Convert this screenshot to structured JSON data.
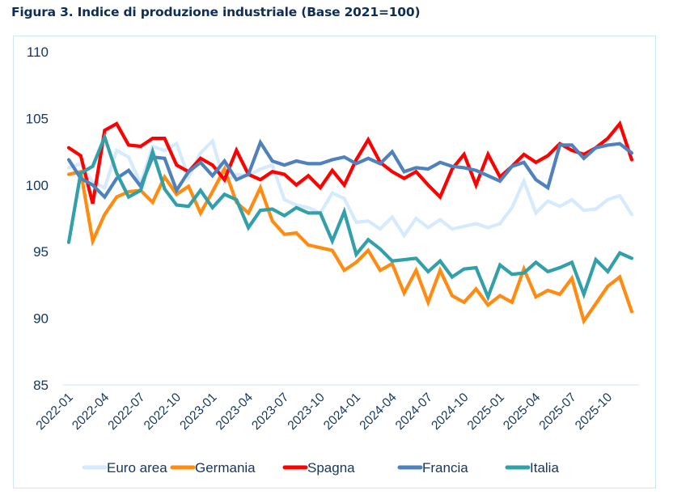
{
  "figure": {
    "title": "Figura 3. Indice di produzione industriale (Base 2021=100)"
  },
  "chart_data": {
    "type": "line",
    "title": "Figura 3. Indice di produzione industriale (Base 2021=100)",
    "xlabel": "",
    "ylabel": "",
    "ylim": [
      85,
      110
    ],
    "yticks": [
      85,
      90,
      95,
      100,
      105,
      110
    ],
    "grid": false,
    "legend_position": "bottom",
    "x": [
      "2022-01",
      "2022-02",
      "2022-03",
      "2022-04",
      "2022-05",
      "2022-06",
      "2022-07",
      "2022-08",
      "2022-09",
      "2022-10",
      "2022-11",
      "2022-12",
      "2023-01",
      "2023-02",
      "2023-03",
      "2023-04",
      "2023-05",
      "2023-06",
      "2023-07",
      "2023-08",
      "2023-09",
      "2023-10",
      "2023-11",
      "2023-12",
      "2024-01",
      "2024-02",
      "2024-03",
      "2024-04",
      "2024-05",
      "2024-06",
      "2024-07",
      "2024-08",
      "2024-09",
      "2024-10",
      "2024-11",
      "2024-12",
      "2025-01",
      "2025-02",
      "2025-03",
      "2025-04",
      "2025-05",
      "2025-06",
      "2025-07",
      "2025-08",
      "2025-09",
      "2025-10",
      "2025-11",
      "2025-12"
    ],
    "xtick_labels": [
      "2022-01",
      "2022-04",
      "2022-07",
      "2022-10",
      "2023-01",
      "2023-04",
      "2023-07",
      "2023-10",
      "2024-01",
      "2024-04",
      "2024-07",
      "2024-10",
      "2025-01",
      "2025-04",
      "2025-07",
      "2025-10"
    ],
    "series": [
      {
        "name": "Euro area",
        "color": "#d6eafe",
        "values": [
          101.3,
          101.6,
          100.2,
          99.8,
          102.6,
          102.1,
          100.1,
          102.9,
          102.6,
          103.1,
          100.6,
          102.4,
          103.3,
          100.2,
          100.8,
          100.7,
          101.2,
          101.5,
          98.9,
          98.5,
          98.3,
          97.9,
          99.4,
          99.0,
          97.2,
          97.3,
          96.7,
          97.6,
          96.2,
          97.5,
          96.8,
          97.4,
          96.7,
          96.9,
          97.1,
          96.8,
          97.1,
          98.3,
          100.3,
          97.9,
          98.8,
          98.4,
          98.9,
          98.1,
          98.2,
          98.9,
          99.2,
          97.8
        ]
      },
      {
        "name": "Germania",
        "color": "#ff8c11",
        "values": [
          100.8,
          101.0,
          95.8,
          97.8,
          99.1,
          99.5,
          99.6,
          98.7,
          100.6,
          99.3,
          99.9,
          97.9,
          99.5,
          101.2,
          98.7,
          97.9,
          99.8,
          97.3,
          96.3,
          96.4,
          95.5,
          95.3,
          95.1,
          93.6,
          94.2,
          95.1,
          93.6,
          94.1,
          91.9,
          93.6,
          91.2,
          93.6,
          91.7,
          91.2,
          92.2,
          91.0,
          91.7,
          91.2,
          93.7,
          91.6,
          92.1,
          91.8,
          93.0,
          89.8,
          91.1,
          92.4,
          93.1,
          90.5
        ]
      },
      {
        "name": "Spagna",
        "color": "#ff0000",
        "values": [
          102.8,
          102.2,
          98.6,
          104.1,
          104.6,
          103.0,
          102.9,
          103.5,
          103.5,
          101.5,
          101.0,
          102.0,
          101.5,
          100.4,
          102.6,
          100.8,
          100.4,
          101.0,
          100.8,
          100.0,
          100.7,
          99.8,
          101.1,
          100.0,
          101.9,
          103.4,
          101.7,
          101.0,
          100.5,
          101.0,
          100.0,
          99.1,
          101.2,
          102.3,
          100.0,
          102.3,
          100.6,
          101.4,
          102.3,
          101.7,
          102.2,
          103.1,
          102.6,
          102.3,
          102.8,
          103.5,
          104.6,
          101.9
        ]
      },
      {
        "name": "Francia",
        "color": "#4f81bd",
        "values": [
          101.9,
          100.5,
          100.0,
          99.1,
          100.5,
          101.1,
          99.9,
          102.1,
          102.0,
          99.6,
          101.0,
          101.7,
          100.7,
          101.8,
          100.4,
          100.8,
          103.2,
          101.8,
          101.5,
          101.8,
          101.6,
          101.6,
          101.9,
          102.1,
          101.6,
          102.0,
          101.6,
          102.5,
          101.0,
          101.3,
          101.2,
          101.7,
          101.4,
          101.3,
          101.1,
          100.7,
          100.3,
          101.4,
          101.7,
          100.4,
          99.8,
          103.0,
          103.0,
          102.0,
          102.8,
          103.0,
          103.1,
          102.4
        ]
      },
      {
        "name": "Italia",
        "color": "#31a0a9",
        "values": [
          95.7,
          100.9,
          101.4,
          103.6,
          100.9,
          99.1,
          99.6,
          102.5,
          99.7,
          98.5,
          98.4,
          99.6,
          98.3,
          99.3,
          98.9,
          96.8,
          98.1,
          98.2,
          97.7,
          98.3,
          97.9,
          97.9,
          95.8,
          98.0,
          94.8,
          95.9,
          95.2,
          94.3,
          94.4,
          94.5,
          93.5,
          94.3,
          93.1,
          93.7,
          93.8,
          91.6,
          94.0,
          93.3,
          93.4,
          94.2,
          93.5,
          93.8,
          94.2,
          91.8,
          94.4,
          93.5,
          94.9,
          94.5
        ]
      }
    ]
  }
}
